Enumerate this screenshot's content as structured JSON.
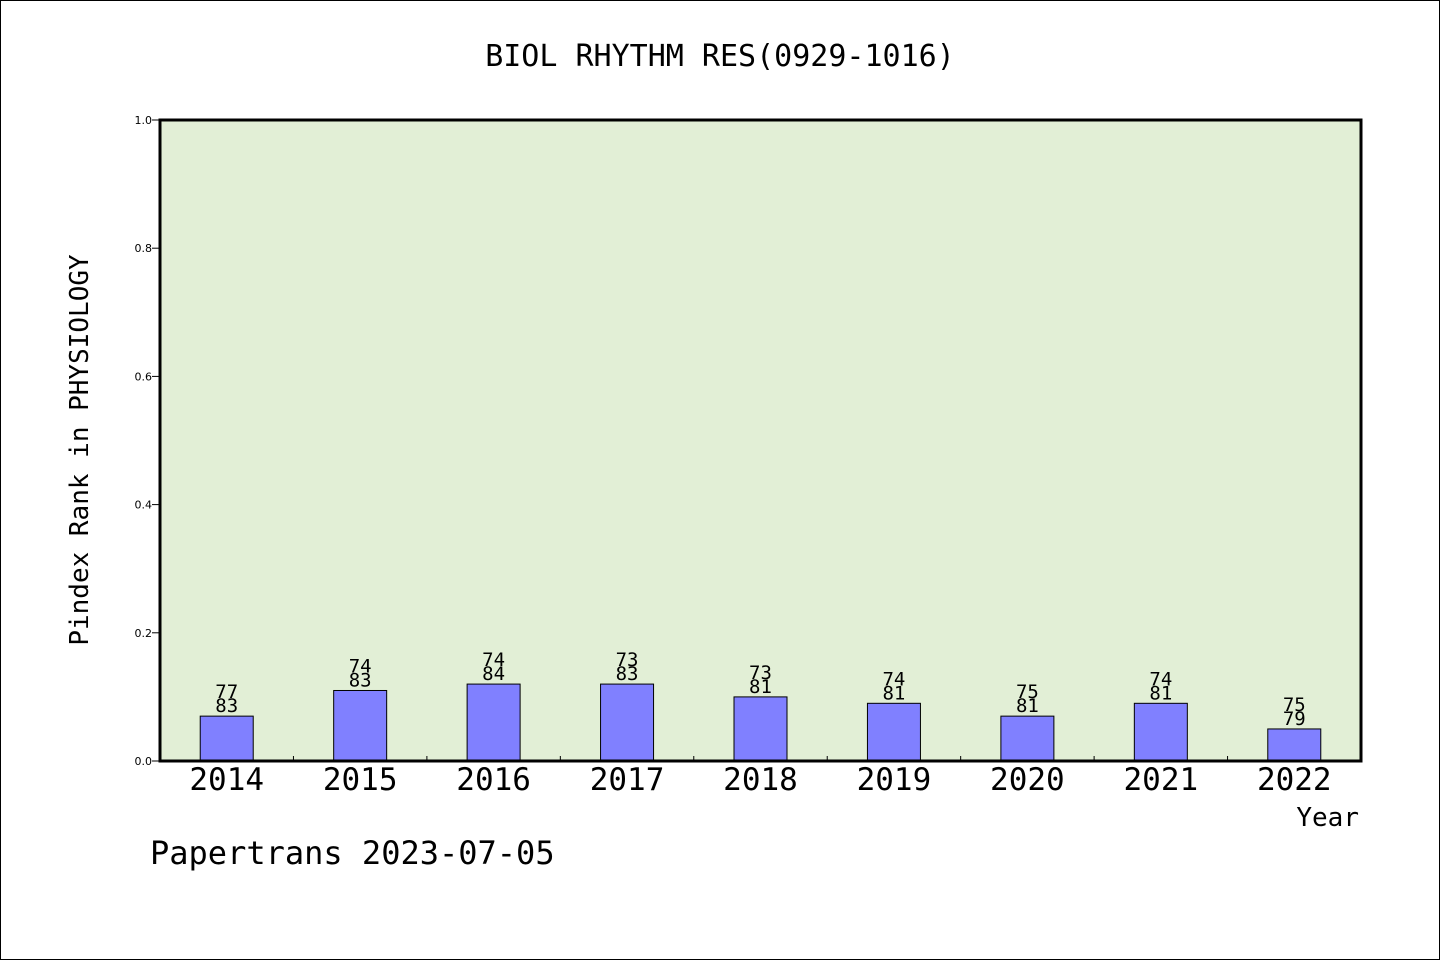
{
  "chart_data": {
    "type": "bar",
    "title": "BIOL RHYTHM RES(0929-1016)",
    "xlabel": "Year",
    "ylabel": "Pindex Rank in PHYSIOLOGY",
    "ylim": [
      0,
      1.0
    ],
    "yticks": [
      "0.0",
      "0.2",
      "0.4",
      "0.6",
      "0.8",
      "1.0"
    ],
    "grid": false,
    "categories": [
      "2014",
      "2015",
      "2016",
      "2017",
      "2018",
      "2019",
      "2020",
      "2021",
      "2022"
    ],
    "values": [
      0.07,
      0.11,
      0.12,
      0.12,
      0.1,
      0.09,
      0.07,
      0.09,
      0.05
    ],
    "labels_top": [
      "77",
      "74",
      "74",
      "73",
      "73",
      "74",
      "75",
      "74",
      "75"
    ],
    "labels_bottom": [
      "83",
      "83",
      "84",
      "83",
      "81",
      "81",
      "81",
      "81",
      "79"
    ],
    "colors": {
      "bar": "#8080ff",
      "plot_background": "#e2efd6",
      "axis": "#000000"
    }
  },
  "footer": {
    "text": "Papertrans 2023-07-05"
  }
}
